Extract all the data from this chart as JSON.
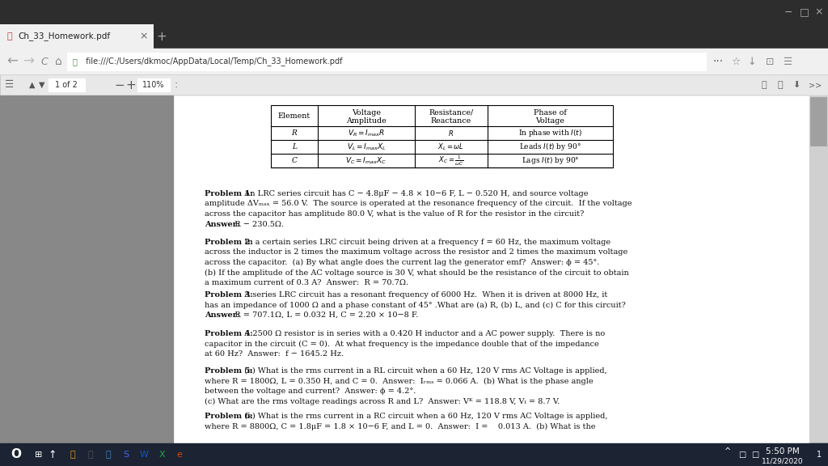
{
  "browser_title_bg": "#383838",
  "tab_bar_bg": "#2d2d2d",
  "active_tab_bg": "#f0f0f0",
  "inactive_tab_bg": "#3a3a3a",
  "nav_bar_bg": "#f0f0f0",
  "pdf_toolbar_bg": "#e0e0e0",
  "page_area_bg": "#888888",
  "white_page_bg": "#ffffff",
  "taskbar_bg": "#1a1a2e",
  "tab_text": "Ch_33_Homework.pdf",
  "url": "file:///C:/Users/dkmoc/AppData/Local/Temp/Ch_33_Homework.pdf",
  "zoom_level": "110%",
  "page_label": "1 of 2",
  "time": "5:50 PM",
  "date": "11/29/2020"
}
